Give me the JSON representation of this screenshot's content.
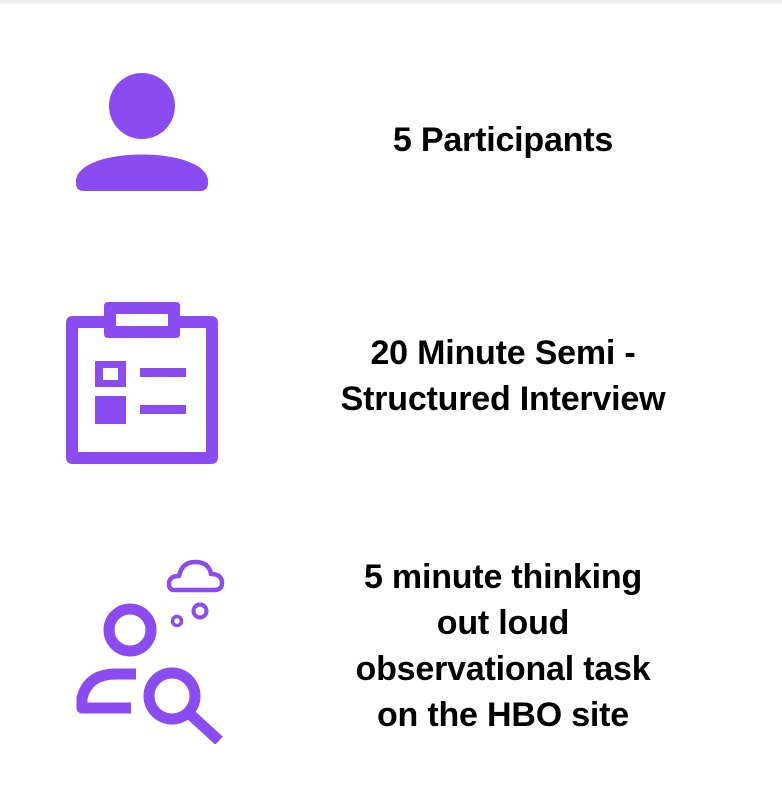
{
  "accent_color": "#8a4bf0",
  "items": [
    {
      "icon": "person-icon",
      "label": "5 Participants"
    },
    {
      "icon": "clipboard-checklist-icon",
      "label": "20 Minute Semi -\nStructured Interview"
    },
    {
      "icon": "user-search-thinking-icon",
      "label": "5 minute thinking\nout loud\nobservational task\non the HBO site"
    }
  ]
}
